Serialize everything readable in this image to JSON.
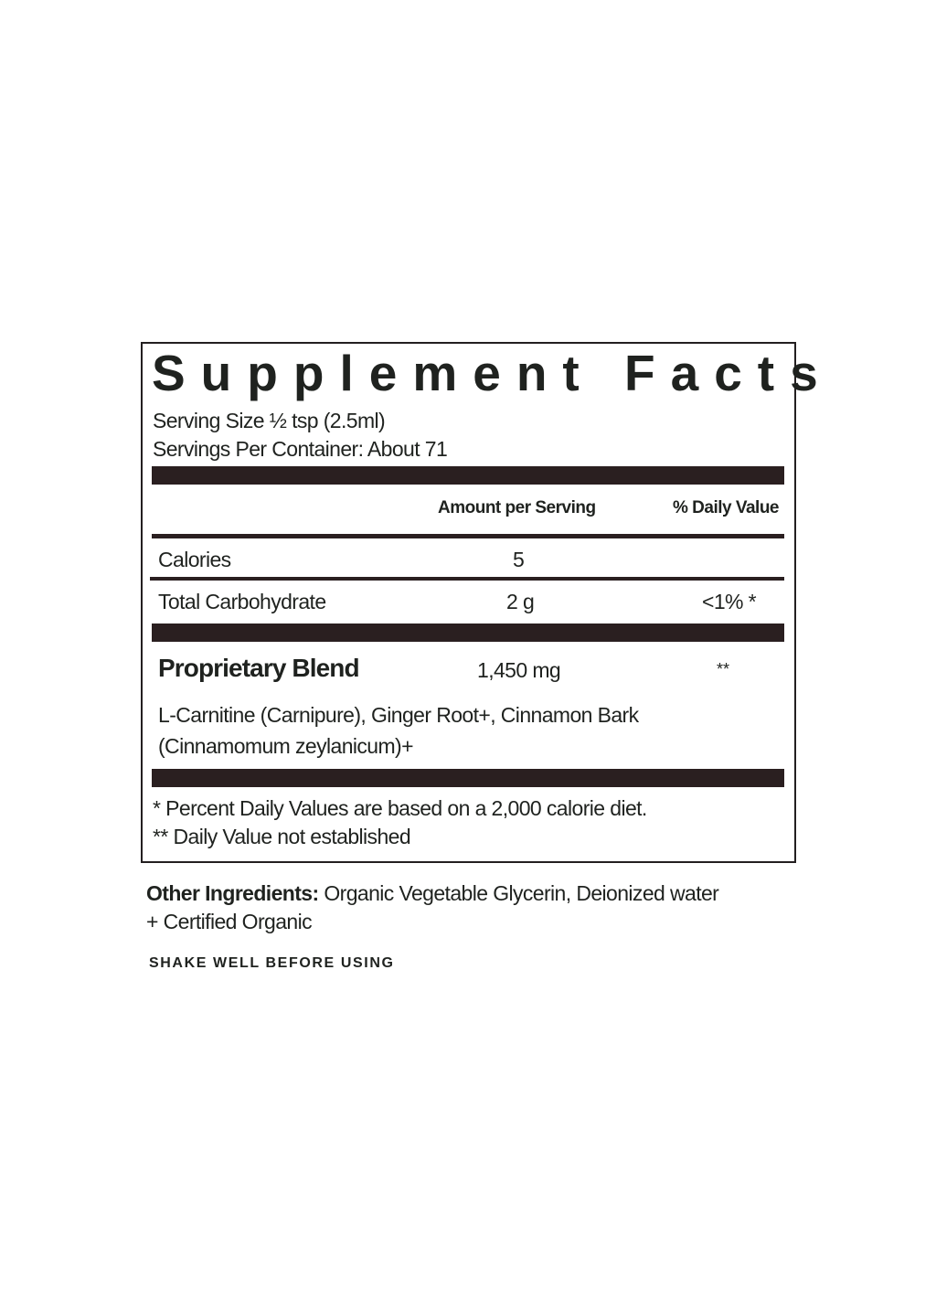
{
  "label": {
    "title": "Supplement Facts",
    "serving_size": "Serving Size ½ tsp (2.5ml)",
    "servings_per_container": "Servings Per Container: About 71",
    "columns": {
      "amount": "Amount per Serving",
      "daily_value": "% Daily Value"
    },
    "rows": [
      {
        "name": "Calories",
        "amount": "5",
        "dv": ""
      },
      {
        "name": "Total Carbohydrate",
        "amount": "2 g",
        "dv": "<1% *"
      }
    ],
    "blend": {
      "name": "Proprietary Blend",
      "amount": "1,450 mg",
      "dv": "**",
      "ingredients_line1": "L-Carnitine (Carnipure), Ginger Root+, Cinnamon Bark",
      "ingredients_line2": "(Cinnamomum zeylanicum)+"
    },
    "footnote1": "* Percent Daily Values are based on a 2,000 calorie diet.",
    "footnote2": "** Daily Value not established"
  },
  "other_ingredients": {
    "label": "Other Ingredients:",
    "text": " Organic Vegetable Glycerin, Deionized water",
    "line2": "+ Certified Organic"
  },
  "instruction": "SHAKE WELL BEFORE USING",
  "colors": {
    "text": "#1f221f",
    "bars": "#2a1f20"
  }
}
